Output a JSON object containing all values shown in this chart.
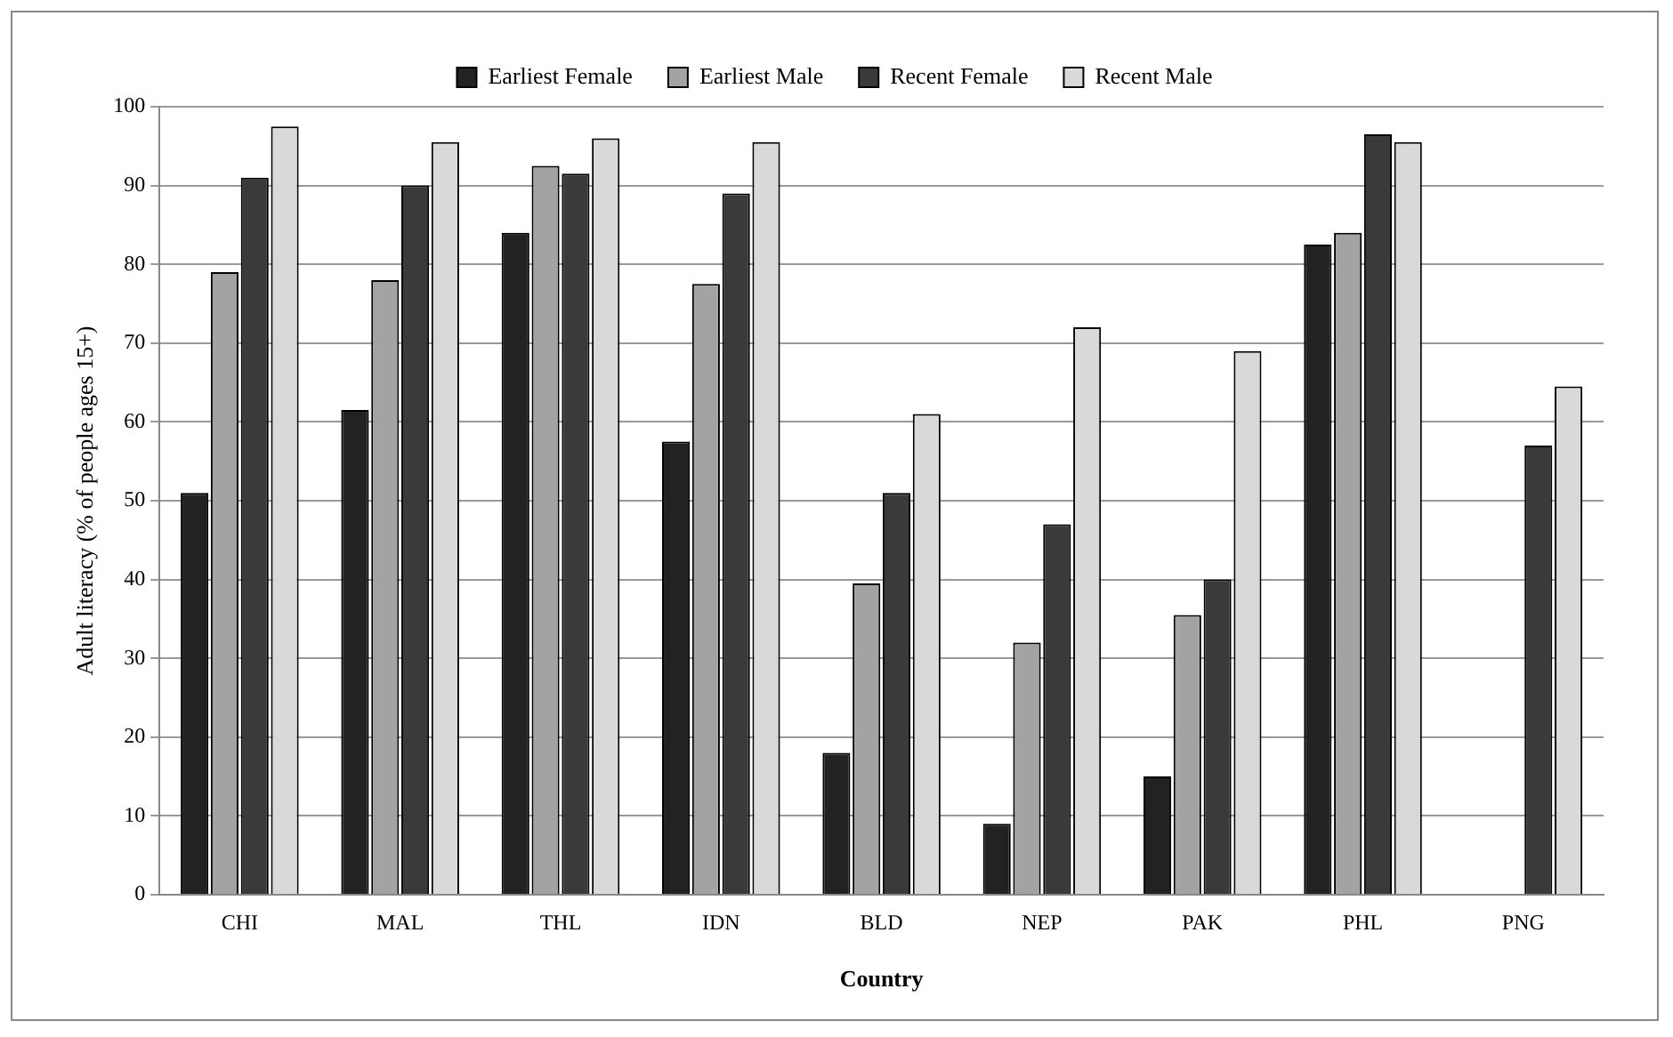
{
  "chart_data": {
    "type": "bar",
    "xlabel": "Country",
    "ylabel": "Adult literacy (% of people ages 15+)",
    "categories": [
      "CHI",
      "MAL",
      "THL",
      "IDN",
      "BLD",
      "NEP",
      "PAK",
      "PHL",
      "PNG"
    ],
    "series": [
      {
        "name": "Earliest Female",
        "color": "#222222",
        "values": [
          51,
          61.5,
          84,
          57.5,
          18,
          9,
          15,
          82.5,
          null
        ]
      },
      {
        "name": "Earliest Male",
        "color": "#a3a3a3",
        "values": [
          79,
          78,
          92.5,
          77.5,
          39.5,
          32,
          35.5,
          84,
          null
        ]
      },
      {
        "name": "Recent Female",
        "color": "#3a3a3a",
        "values": [
          91,
          90,
          91.5,
          89,
          51,
          47,
          40,
          96.5,
          57
        ]
      },
      {
        "name": "Recent Male",
        "color": "#d9d9d9",
        "values": [
          97.5,
          95.5,
          96,
          95.5,
          61,
          72,
          69,
          95.5,
          64.5
        ]
      }
    ],
    "ylim": [
      0,
      100
    ],
    "yticks": [
      0,
      10,
      20,
      30,
      40,
      50,
      60,
      70,
      80,
      90,
      100
    ],
    "grid": "y",
    "legend": "top"
  }
}
